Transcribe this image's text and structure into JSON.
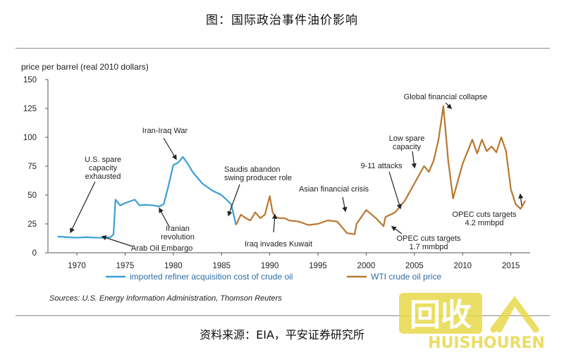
{
  "figure_title": "图：国际政治事件油价影响",
  "source_caption": "资料来源：EIA，平安证券研究所",
  "watermark": {
    "text": "回收",
    "latin": "HUISHOUREN",
    "color": "#e8d84a"
  },
  "colors": {
    "refiner": "#3a9fd8",
    "wti": "#b87830",
    "axis": "#555555",
    "arrow": "#222222"
  },
  "chart_data": {
    "type": "line",
    "ylabel": "price per barrel (real 2010 dollars)",
    "xlabel": "",
    "ylim": [
      0,
      150
    ],
    "xlim": [
      1967,
      2017
    ],
    "yticks": [
      0,
      25,
      50,
      75,
      100,
      125,
      150
    ],
    "xticks": [
      1970,
      1975,
      1980,
      1985,
      1990,
      1995,
      2000,
      2005,
      2010,
      2015
    ],
    "grid": false,
    "legend_position": "bottom",
    "sources": "Sources: U.S. Energy Information Administration, Thomson Reuters",
    "series": [
      {
        "name": "imported refiner acquisition cost of crude oil",
        "color": "#3a9fd8",
        "x": [
          1968,
          1969,
          1970,
          1971,
          1972,
          1973,
          1973.5,
          1973.8,
          1974,
          1974.5,
          1975,
          1976,
          1976.5,
          1977,
          1978,
          1978.5,
          1979,
          1979.5,
          1980,
          1980.5,
          1981,
          1981.5,
          1982,
          1983,
          1984,
          1985,
          1986,
          1986.5
        ],
        "values": [
          14,
          13.5,
          13,
          13.5,
          13,
          13,
          13.5,
          16,
          46,
          41,
          43,
          46,
          41,
          41.5,
          41,
          40,
          42,
          58,
          76,
          78,
          83,
          77,
          70,
          60,
          54,
          50,
          42,
          24
        ]
      },
      {
        "name": "WTI crude oil price",
        "color": "#b87830",
        "x": [
          1986.5,
          1987,
          1987.5,
          1988,
          1988.5,
          1989,
          1989.5,
          1990,
          1990.3,
          1990.6,
          1991,
          1991.5,
          1992,
          1993,
          1994,
          1995,
          1996,
          1997,
          1998,
          1998.8,
          1999,
          2000,
          2001,
          2001.8,
          2002,
          2003,
          2004,
          2005,
          2006,
          2006.5,
          2007,
          2007.5,
          2008,
          2008.5,
          2009,
          2009.5,
          2010,
          2011,
          2011.5,
          2012,
          2012.5,
          2013,
          2013.5,
          2014,
          2014.5,
          2015,
          2015.5,
          2016,
          2016.5
        ],
        "values": [
          24,
          33,
          30,
          28,
          35,
          30,
          33,
          49,
          35,
          31,
          30,
          30,
          28,
          27,
          24,
          25,
          28,
          27,
          17,
          16,
          25,
          37,
          30,
          23,
          31,
          35,
          45,
          60,
          75,
          70,
          80,
          98,
          127,
          80,
          47,
          62,
          77,
          98,
          86,
          98,
          88,
          92,
          87,
          100,
          88,
          55,
          42,
          38,
          45
        ]
      }
    ],
    "annotations": [
      "U.S. spare capacity exhausted",
      "Iran-Iraq War",
      "Saudis abandon swing producer role",
      "Iranian revolution",
      "Arab Oil Embargo",
      "Iraq invades Kuwait",
      "Asian financial crisis",
      "9-11 attacks",
      "Low spare capacity",
      "Global financial collapse",
      "OPEC cuts targets 1.7 mmbpd",
      "OPEC cuts targets 4.2 mmbpd"
    ]
  }
}
